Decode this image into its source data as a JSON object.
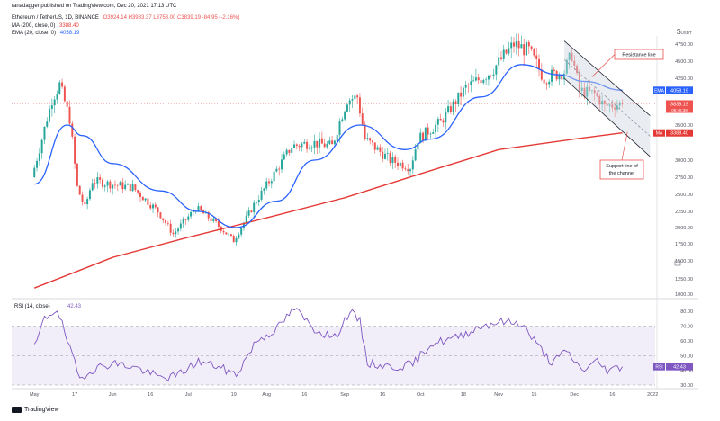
{
  "header": {
    "publisher": "ranadagger published on TradingView.com, Dec 20, 2021 17:13 UTC",
    "symbol": "Ethereum / TetherUS, 1D, BINANCE",
    "ohlc": "O3924.14  H3983.37  L3753.00  C3839.19  -84.95 (-2.16%)",
    "ma_label": "MA (200, close, 0)",
    "ma_value": "3388.40",
    "ema_label": "EMA (20, close, 0)",
    "ema_value": "4058.19"
  },
  "footer": {
    "brand": "TradingView"
  },
  "currency_mark": "$",
  "currency_suffix": "USDT",
  "colors": {
    "up": "#26a69a",
    "down": "#ef5350",
    "ema": "#2962ff",
    "ma": "#e53935",
    "rsi": "#7e57c2",
    "rsi_band": "#ede7f6",
    "annotation": "#e53935",
    "channel": "#1e222d"
  },
  "chart_data": [
    {
      "type": "candlestick",
      "title": "Ethereum / TetherUS, 1D, BINANCE",
      "ylim": [
        1000,
        5000
      ],
      "yticks": [
        "4750.00",
        "4500.00",
        "4250.00",
        "3500.00",
        "3000.00",
        "2750.00",
        "2500.00",
        "2250.00",
        "2000.00",
        "1750.00",
        "1500.00",
        "1250.00",
        "1000.00"
      ],
      "x_ticks": [
        "May",
        "17",
        "Jun",
        "16",
        "Jul",
        "19",
        "Aug",
        "16",
        "Sep",
        "16",
        "Oct",
        "18",
        "Nov",
        "15",
        "Dec",
        "16",
        "2022"
      ],
      "price_key_points": [
        {
          "date": "2021-05-01",
          "price": 2750
        },
        {
          "date": "2021-05-05",
          "price": 3300
        },
        {
          "date": "2021-05-09",
          "price": 3900
        },
        {
          "date": "2021-05-12",
          "price": 4150
        },
        {
          "date": "2021-05-16",
          "price": 3600
        },
        {
          "date": "2021-05-19",
          "price": 2600
        },
        {
          "date": "2021-05-22",
          "price": 2300
        },
        {
          "date": "2021-05-25",
          "price": 2700
        },
        {
          "date": "2021-06-01",
          "price": 2650
        },
        {
          "date": "2021-06-10",
          "price": 2600
        },
        {
          "date": "2021-06-20",
          "price": 2250
        },
        {
          "date": "2021-06-26",
          "price": 1900
        },
        {
          "date": "2021-07-05",
          "price": 2300
        },
        {
          "date": "2021-07-12",
          "price": 2100
        },
        {
          "date": "2021-07-20",
          "price": 1800
        },
        {
          "date": "2021-07-28",
          "price": 2350
        },
        {
          "date": "2021-08-05",
          "price": 2800
        },
        {
          "date": "2021-08-12",
          "price": 3200
        },
        {
          "date": "2021-08-20",
          "price": 3250
        },
        {
          "date": "2021-08-28",
          "price": 3200
        },
        {
          "date": "2021-09-03",
          "price": 3900
        },
        {
          "date": "2021-09-07",
          "price": 3950
        },
        {
          "date": "2021-09-10",
          "price": 3300
        },
        {
          "date": "2021-09-20",
          "price": 3000
        },
        {
          "date": "2021-09-28",
          "price": 2900
        },
        {
          "date": "2021-10-01",
          "price": 3300
        },
        {
          "date": "2021-10-10",
          "price": 3550
        },
        {
          "date": "2021-10-20",
          "price": 4100
        },
        {
          "date": "2021-10-30",
          "price": 4350
        },
        {
          "date": "2021-11-08",
          "price": 4750
        },
        {
          "date": "2021-11-14",
          "price": 4650
        },
        {
          "date": "2021-11-20",
          "price": 4250
        },
        {
          "date": "2021-11-28",
          "price": 4350
        },
        {
          "date": "2021-12-01",
          "price": 4600
        },
        {
          "date": "2021-12-04",
          "price": 4050
        },
        {
          "date": "2021-12-10",
          "price": 4000
        },
        {
          "date": "2021-12-14",
          "price": 3800
        },
        {
          "date": "2021-12-20",
          "price": 3839
        }
      ],
      "ema20": {
        "name": "EMA",
        "last": 4058.19,
        "points": [
          {
            "date": "2021-05-01",
            "value": 2650
          },
          {
            "date": "2021-05-14",
            "value": 3500
          },
          {
            "date": "2021-05-20",
            "value": 3350
          },
          {
            "date": "2021-06-01",
            "value": 2950
          },
          {
            "date": "2021-06-20",
            "value": 2550
          },
          {
            "date": "2021-07-05",
            "value": 2250
          },
          {
            "date": "2021-07-20",
            "value": 2000
          },
          {
            "date": "2021-08-05",
            "value": 2400
          },
          {
            "date": "2021-08-20",
            "value": 3000
          },
          {
            "date": "2021-09-07",
            "value": 3500
          },
          {
            "date": "2021-09-25",
            "value": 3150
          },
          {
            "date": "2021-10-05",
            "value": 3300
          },
          {
            "date": "2021-10-25",
            "value": 3950
          },
          {
            "date": "2021-11-10",
            "value": 4450
          },
          {
            "date": "2021-11-25",
            "value": 4300
          },
          {
            "date": "2021-12-05",
            "value": 4200
          },
          {
            "date": "2021-12-20",
            "value": 4058
          }
        ]
      },
      "ma200": {
        "name": "MA",
        "last": 3388.4,
        "points": [
          {
            "date": "2021-05-01",
            "value": 1100
          },
          {
            "date": "2021-06-01",
            "value": 1550
          },
          {
            "date": "2021-07-01",
            "value": 1850
          },
          {
            "date": "2021-08-01",
            "value": 2150
          },
          {
            "date": "2021-09-01",
            "value": 2450
          },
          {
            "date": "2021-10-01",
            "value": 2800
          },
          {
            "date": "2021-11-01",
            "value": 3150
          },
          {
            "date": "2021-12-01",
            "value": 3300
          },
          {
            "date": "2021-12-20",
            "value": 3388
          }
        ]
      },
      "channel": {
        "resistance": {
          "label": "Resistance line",
          "from": {
            "date": "2021-11-27",
            "price": 4800
          },
          "to": {
            "date": "2021-12-31",
            "price": 3650
          }
        },
        "support": {
          "label": "Support line of the channel",
          "from": {
            "date": "2021-11-27",
            "price": 4250
          },
          "to": {
            "date": "2021-12-31",
            "price": 3050
          }
        }
      },
      "price_labels": [
        {
          "tag": "EMA",
          "value": "4058.19"
        },
        {
          "tag": "",
          "value": "3839.19",
          "sub": "06:46:39"
        },
        {
          "tag": "MA",
          "value": "3388.40"
        }
      ]
    },
    {
      "type": "line",
      "title": "RSI (14, close)",
      "value": "42.43",
      "ylim": [
        30,
        85
      ],
      "yticks": [
        "80.00",
        "70.00",
        "60.00",
        "50.00",
        "40.00",
        "30.00"
      ],
      "bands": [
        30,
        70
      ],
      "points": [
        {
          "date": "2021-05-01",
          "value": 55
        },
        {
          "date": "2021-05-05",
          "value": 75
        },
        {
          "date": "2021-05-10",
          "value": 82
        },
        {
          "date": "2021-05-14",
          "value": 60
        },
        {
          "date": "2021-05-19",
          "value": 34
        },
        {
          "date": "2021-05-23",
          "value": 40
        },
        {
          "date": "2021-06-01",
          "value": 45
        },
        {
          "date": "2021-06-10",
          "value": 42
        },
        {
          "date": "2021-06-20",
          "value": 35
        },
        {
          "date": "2021-06-26",
          "value": 36
        },
        {
          "date": "2021-07-05",
          "value": 46
        },
        {
          "date": "2021-07-12",
          "value": 43
        },
        {
          "date": "2021-07-20",
          "value": 37
        },
        {
          "date": "2021-07-28",
          "value": 60
        },
        {
          "date": "2021-08-05",
          "value": 68
        },
        {
          "date": "2021-08-12",
          "value": 82
        },
        {
          "date": "2021-08-20",
          "value": 68
        },
        {
          "date": "2021-08-28",
          "value": 62
        },
        {
          "date": "2021-09-03",
          "value": 80
        },
        {
          "date": "2021-09-07",
          "value": 73
        },
        {
          "date": "2021-09-10",
          "value": 45
        },
        {
          "date": "2021-09-20",
          "value": 42
        },
        {
          "date": "2021-09-28",
          "value": 44
        },
        {
          "date": "2021-10-05",
          "value": 58
        },
        {
          "date": "2021-10-15",
          "value": 62
        },
        {
          "date": "2021-10-25",
          "value": 70
        },
        {
          "date": "2021-11-01",
          "value": 73
        },
        {
          "date": "2021-11-10",
          "value": 72
        },
        {
          "date": "2021-11-16",
          "value": 58
        },
        {
          "date": "2021-11-22",
          "value": 45
        },
        {
          "date": "2021-11-28",
          "value": 53
        },
        {
          "date": "2021-12-04",
          "value": 40
        },
        {
          "date": "2021-12-10",
          "value": 46
        },
        {
          "date": "2021-12-14",
          "value": 40
        },
        {
          "date": "2021-12-20",
          "value": 42.43
        }
      ]
    }
  ]
}
